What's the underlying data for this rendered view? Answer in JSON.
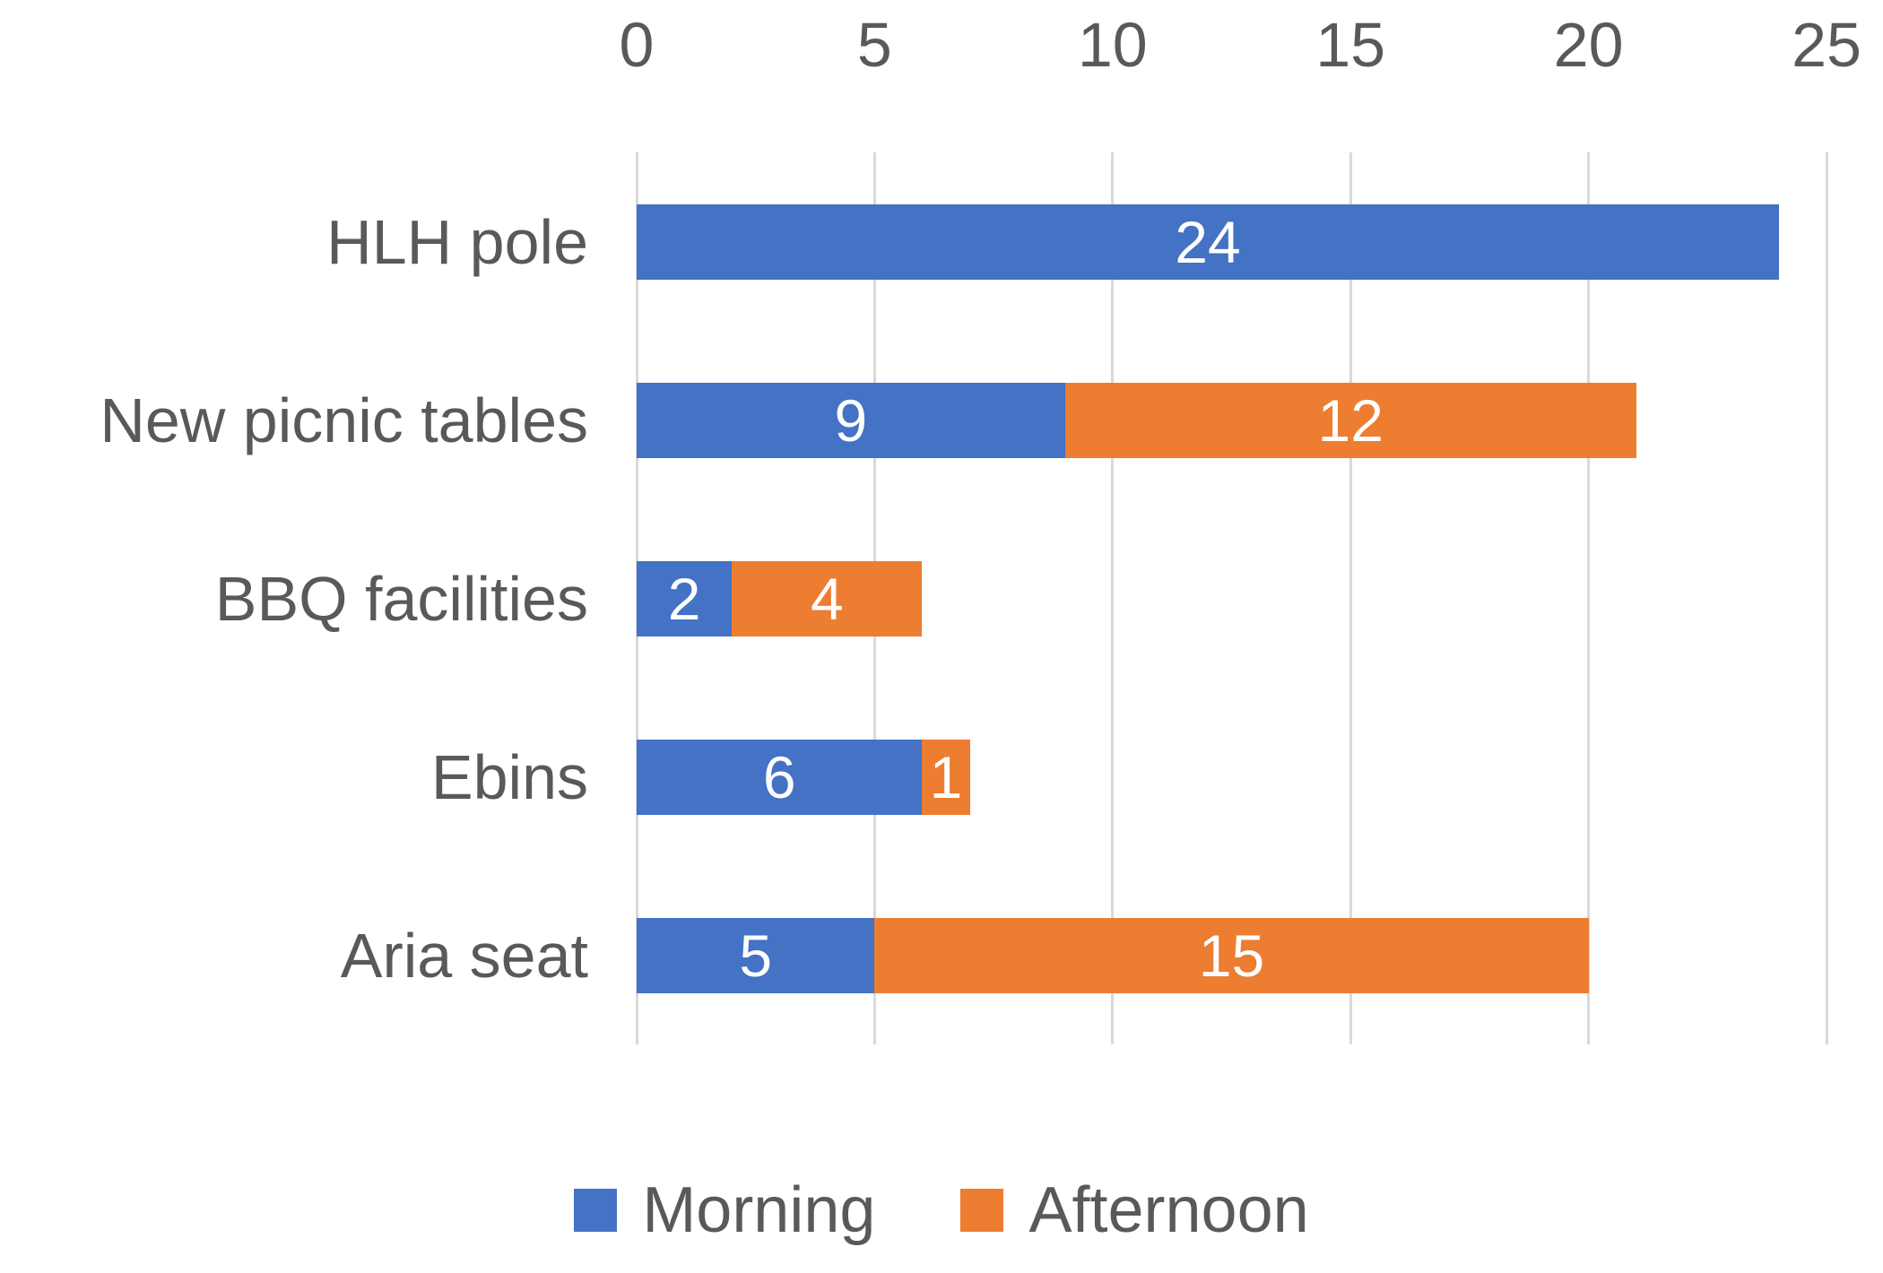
{
  "chart_data": {
    "type": "bar",
    "orientation": "horizontal",
    "stacked": true,
    "title": "",
    "categories": [
      "HLH pole",
      "New picnic tables",
      "BBQ facilities",
      "Ebins",
      "Aria seat"
    ],
    "series": [
      {
        "name": "Morning",
        "color": "#4472C4",
        "values": [
          24,
          9,
          2,
          6,
          5
        ]
      },
      {
        "name": "Afternoon",
        "color": "#ED7D31",
        "values": [
          0,
          12,
          4,
          1,
          15
        ]
      }
    ],
    "totals": [
      24,
      21,
      6,
      7,
      20
    ],
    "x_axis": {
      "position": "top",
      "min": 0,
      "max": 25,
      "tick_step": 5,
      "tick_labels": [
        "0",
        "5",
        "10",
        "15",
        "20",
        "25"
      ]
    },
    "data_labels": {
      "visible": true,
      "color": "#FFFFFF",
      "hide_zero": true
    },
    "grid": {
      "vertical": true,
      "color": "#D9D9D9"
    },
    "legend": {
      "position": "bottom",
      "entries": [
        "Morning",
        "Afternoon"
      ]
    },
    "text_color": "#595959",
    "background": "#FFFFFF"
  }
}
